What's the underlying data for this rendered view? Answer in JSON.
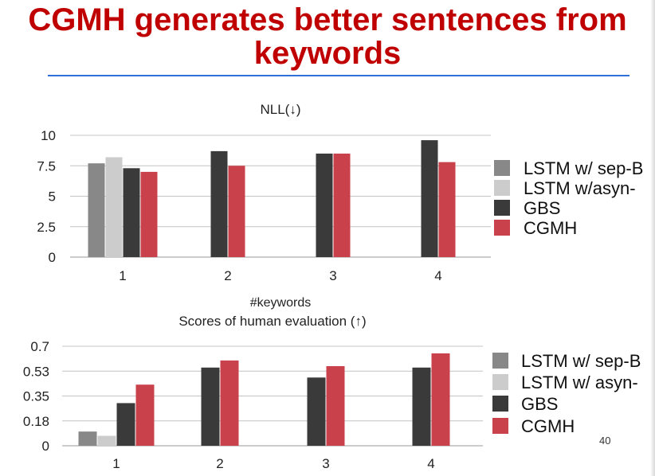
{
  "slide": {
    "title_line1": "CGMH generates better sentences from",
    "title_line2": "keywords",
    "page_number": "40",
    "title_color": "#c00000",
    "rule_color": "#2f6fd8"
  },
  "chart_data": [
    {
      "type": "bar",
      "title": "NLL(↓)",
      "xlabel": "#keywords",
      "ylabel": "",
      "categories": [
        "1",
        "2",
        "3",
        "4"
      ],
      "yticks": [
        "0",
        "2.5",
        "5",
        "7.5",
        "10"
      ],
      "ylim": [
        0,
        10
      ],
      "grid": true,
      "legend_position": "right",
      "series": [
        {
          "name": "LSTM w/ sep-B",
          "color": "#888888",
          "values": [
            7.7,
            null,
            null,
            null
          ]
        },
        {
          "name": "LSTM w/asyn-",
          "color": "#cccccc",
          "values": [
            8.2,
            null,
            null,
            null
          ]
        },
        {
          "name": "GBS",
          "color": "#3a3a3a",
          "values": [
            7.3,
            8.7,
            8.5,
            9.6
          ]
        },
        {
          "name": "CGMH",
          "color": "#c8414b",
          "values": [
            7.0,
            7.5,
            8.5,
            7.8
          ]
        }
      ]
    },
    {
      "type": "bar",
      "title": "Scores of human evaluation (↑)",
      "xlabel": "",
      "ylabel": "",
      "categories": [
        "1",
        "2",
        "3",
        "4"
      ],
      "yticks": [
        "0",
        "0.18",
        "0.35",
        "0.53",
        "0.7"
      ],
      "ylim": [
        0,
        0.7
      ],
      "grid": true,
      "legend_position": "right",
      "series": [
        {
          "name": "LSTM w/ sep-B",
          "color": "#888888",
          "values": [
            0.1,
            null,
            null,
            null
          ]
        },
        {
          "name": "LSTM w/ asyn-",
          "color": "#cccccc",
          "values": [
            0.07,
            null,
            null,
            null
          ]
        },
        {
          "name": "GBS",
          "color": "#3a3a3a",
          "values": [
            0.3,
            0.55,
            0.48,
            0.55
          ]
        },
        {
          "name": "CGMH",
          "color": "#c8414b",
          "values": [
            0.43,
            0.6,
            0.56,
            0.65
          ]
        }
      ]
    }
  ]
}
